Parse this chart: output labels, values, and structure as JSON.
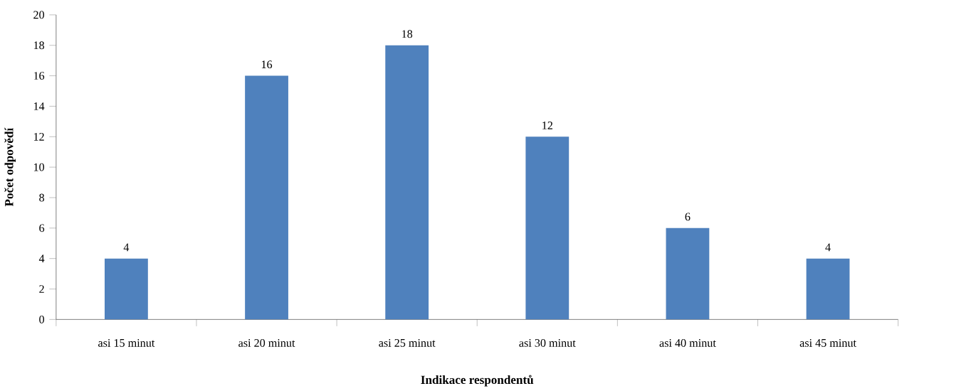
{
  "chart_data": {
    "type": "bar",
    "xlabel": "Indikace respondentů",
    "ylabel": "Počet odpovědí",
    "categories": [
      "asi 15 minut",
      "asi 20 minut",
      "asi 25 minut",
      "asi 30 minut",
      "asi 40 minut",
      "asi 45 minut"
    ],
    "values": [
      4,
      16,
      18,
      12,
      6,
      4
    ],
    "color": "#4f81bd",
    "ylim": [
      0,
      20
    ],
    "yticks": [
      0,
      2,
      4,
      6,
      8,
      10,
      12,
      14,
      16,
      18,
      20
    ],
    "data_labels": true,
    "grid": false
  }
}
